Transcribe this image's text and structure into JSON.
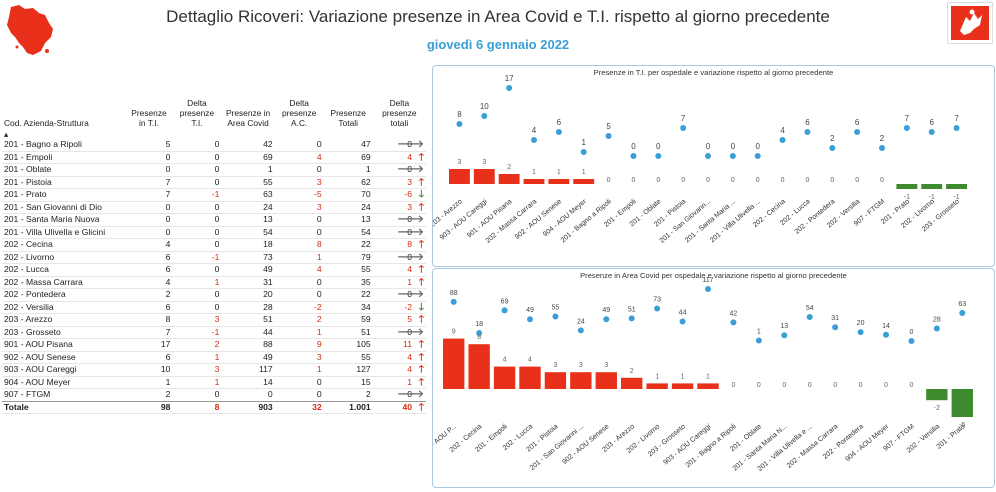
{
  "header": {
    "title": "Dettaglio Ricoveri: Variazione presenze in Area Covid e T.I. rispetto al giorno precedente",
    "date": "giovedì 6 gennaio 2022"
  },
  "icons": {
    "map": "tuscany-map-icon",
    "flag": "tuscany-region-flag-icon"
  },
  "colors": {
    "accent": "#3a9fd6",
    "bar_negative_delta": "#e8301a",
    "bar_positive_delta": "#3e8a2e",
    "arrow_up": "#e8301a",
    "arrow_down": "#3e8a2e",
    "arrow_right": "#666666",
    "point": "#3a9fd6"
  },
  "table": {
    "headers": [
      "Cod. Azienda-Struttura",
      "Presenze in T.I.",
      "Delta presenze T.I.",
      "Presenze in Area Covid",
      "Delta presenze A.C.",
      "Presenze Totali",
      "Delta presenze totali"
    ],
    "rows": [
      [
        "201 - Bagno a Ripoli",
        "5",
        "0",
        "42",
        "0",
        "47",
        "0",
        "right"
      ],
      [
        "201 - Empoli",
        "0",
        "0",
        "69",
        "4",
        "69",
        "4",
        "up"
      ],
      [
        "201 - Oblate",
        "0",
        "0",
        "1",
        "0",
        "1",
        "0",
        "right"
      ],
      [
        "201 - Pistoia",
        "7",
        "0",
        "55",
        "3",
        "62",
        "3",
        "up"
      ],
      [
        "201 - Prato",
        "7",
        "-1",
        "63",
        "-5",
        "70",
        "-6",
        "down"
      ],
      [
        "201 - San Giovanni di Dio",
        "0",
        "0",
        "24",
        "3",
        "24",
        "3",
        "up"
      ],
      [
        "201 - Santa Maria Nuova",
        "0",
        "0",
        "13",
        "0",
        "13",
        "0",
        "right"
      ],
      [
        "201 - Villa Ulivella e Glicini",
        "0",
        "0",
        "54",
        "0",
        "54",
        "0",
        "right"
      ],
      [
        "202 - Cecina",
        "4",
        "0",
        "18",
        "8",
        "22",
        "8",
        "up"
      ],
      [
        "202 - Livorno",
        "6",
        "-1",
        "73",
        "1",
        "79",
        "0",
        "right"
      ],
      [
        "202 - Lucca",
        "6",
        "0",
        "49",
        "4",
        "55",
        "4",
        "up"
      ],
      [
        "202 - Massa Carrara",
        "4",
        "1",
        "31",
        "0",
        "35",
        "1",
        "up"
      ],
      [
        "202 - Pontedera",
        "2",
        "0",
        "20",
        "0",
        "22",
        "0",
        "right"
      ],
      [
        "202 - Versilia",
        "6",
        "0",
        "28",
        "-2",
        "34",
        "-2",
        "down"
      ],
      [
        "203 - Arezzo",
        "8",
        "3",
        "51",
        "2",
        "59",
        "5",
        "up"
      ],
      [
        "203 - Grosseto",
        "7",
        "-1",
        "44",
        "1",
        "51",
        "0",
        "right"
      ],
      [
        "901 - AOU Pisana",
        "17",
        "2",
        "88",
        "9",
        "105",
        "11",
        "up"
      ],
      [
        "902 - AOU Senese",
        "6",
        "1",
        "49",
        "3",
        "55",
        "4",
        "up"
      ],
      [
        "903 - AOU Careggi",
        "10",
        "3",
        "117",
        "1",
        "127",
        "4",
        "up"
      ],
      [
        "904 - AOU Meyer",
        "1",
        "1",
        "14",
        "0",
        "15",
        "1",
        "up"
      ],
      [
        "907 - FTGM",
        "2",
        "0",
        "0",
        "0",
        "2",
        "0",
        "right"
      ]
    ],
    "total": [
      "Totale",
      "98",
      "8",
      "903",
      "32",
      "1.001",
      "40",
      "up"
    ]
  },
  "chart_data": [
    {
      "type": "bar",
      "title": "Presenze in T.I. per ospedale e variazione rispetto al giorno precedente",
      "categories": [
        "203 - Arezzo",
        "903 - AOU Careggi",
        "901 - AOU Pisana",
        "202 - Massa Carrara",
        "902 - AOU Senese",
        "904 - AOU Meyer",
        "201 - Bagno a Ripoli",
        "201 - Empoli",
        "201 - Oblate",
        "201 - Pistoia",
        "201 - San Giovann...",
        "201 - Santa Maria ...",
        "201 - Villa Ulivella ...",
        "202 - Cecina",
        "202 - Lucca",
        "202 - Pontedera",
        "202 - Versilia",
        "907 - FTGM",
        "201 - Prato",
        "202 - Livorno",
        "203 - Grosseto"
      ],
      "series": [
        {
          "values": [
            3,
            3,
            2,
            1,
            1,
            1,
            0,
            0,
            0,
            0,
            0,
            0,
            0,
            0,
            0,
            0,
            0,
            0,
            -1,
            -1,
            -1
          ]
        },
        {
          "values": [
            8,
            10,
            17,
            4,
            6,
            1,
            5,
            0,
            0,
            7,
            0,
            0,
            0,
            4,
            6,
            2,
            6,
            2,
            7,
            6,
            7
          ]
        }
      ]
    },
    {
      "type": "bar",
      "title": "Presenze in Area Covid per ospedale e variazione rispetto al giorno precedente",
      "categories": [
        "901 - AOU P...",
        "202 - Cecina",
        "201 - Empoli",
        "202 - Lucca",
        "201 - Pistoia",
        "201 - San Giovanni ...",
        "902 - AOU Senese",
        "203 - Arezzo",
        "202 - Livorno",
        "203 - Grosseto",
        "903 - AOU Careggi",
        "201 - Bagno a Ripoli",
        "201 - Oblate",
        "201 - Santa Maria N...",
        "201 - Villa Ulivella e ...",
        "202 - Massa Carrara",
        "202 - Pontedera",
        "904 - AOU Meyer",
        "907 - FTGM",
        "202 - Versilia",
        "201 - Prato"
      ],
      "series": [
        {
          "values": [
            9,
            8,
            4,
            4,
            3,
            3,
            3,
            2,
            1,
            1,
            1,
            0,
            0,
            0,
            0,
            0,
            0,
            0,
            0,
            -2,
            -5
          ]
        },
        {
          "values": [
            88,
            18,
            69,
            49,
            55,
            24,
            49,
            51,
            73,
            44,
            117,
            42,
            1,
            13,
            54,
            31,
            20,
            14,
            0,
            28,
            63
          ]
        }
      ]
    }
  ]
}
